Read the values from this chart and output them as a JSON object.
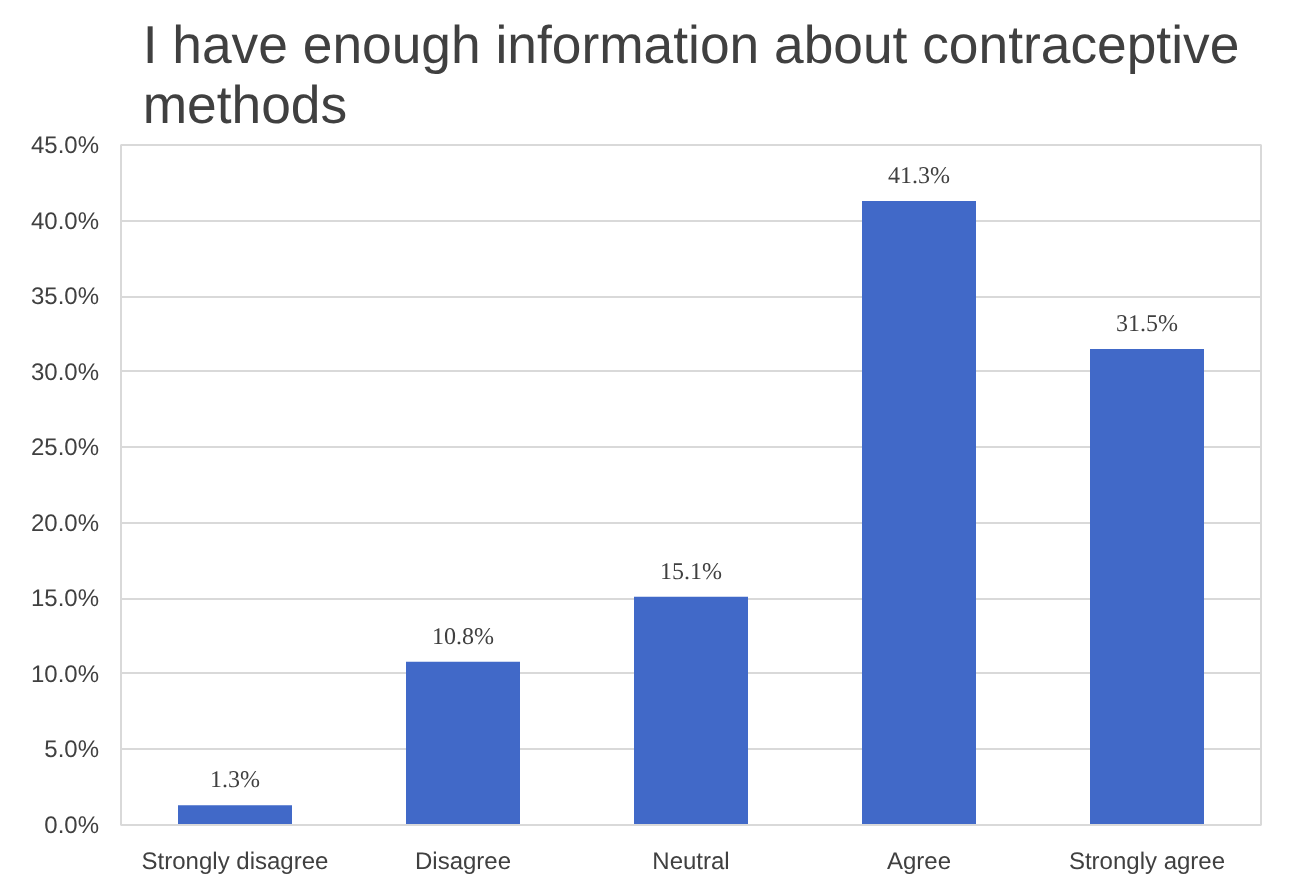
{
  "chart_data": {
    "type": "bar",
    "title": "I have enough information about contraceptive methods",
    "categories": [
      "Strongly disagree",
      "Disagree",
      "Neutral",
      "Agree",
      "Strongly agree"
    ],
    "values": [
      1.3,
      10.8,
      15.1,
      41.3,
      31.5
    ],
    "value_labels": [
      "1.3%",
      "10.8%",
      "15.1%",
      "41.3%",
      "31.5%"
    ],
    "color": "#4169c8",
    "ylim": [
      0,
      45
    ],
    "yticks": [
      {
        "value": 0,
        "label": "0.0%"
      },
      {
        "value": 5,
        "label": "5.0%"
      },
      {
        "value": 10,
        "label": "10.0%"
      },
      {
        "value": 15,
        "label": "15.0%"
      },
      {
        "value": 20,
        "label": "20.0%"
      },
      {
        "value": 25,
        "label": "25.0%"
      },
      {
        "value": 30,
        "label": "30.0%"
      },
      {
        "value": 35,
        "label": "35.0%"
      },
      {
        "value": 40,
        "label": "40.0%"
      },
      {
        "value": 45,
        "label": "45.0%"
      }
    ],
    "grid": "y"
  }
}
